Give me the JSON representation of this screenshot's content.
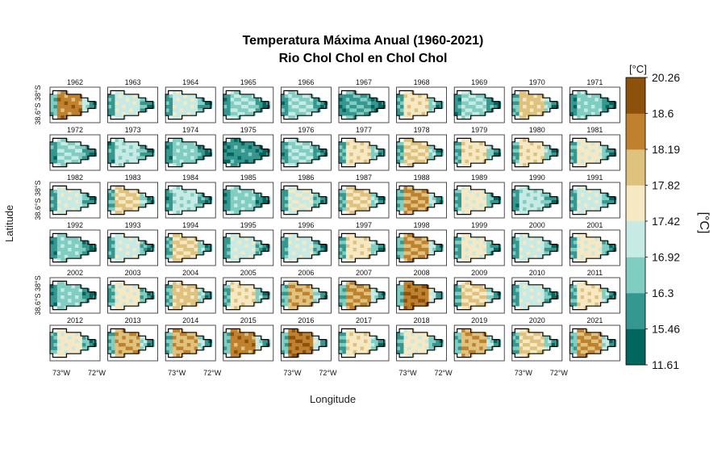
{
  "chart_data": {
    "type": "heatmap",
    "title": "Temperatura Máxima Anual (1960-2021)",
    "subtitle": "Rio Chol Chol en Chol Chol",
    "xlabel": "Longitude",
    "ylabel": "Latitude",
    "x_ticks": [
      "73°W",
      "72°W"
    ],
    "y_ticks": [
      "38.6°S",
      "38°S"
    ],
    "legend": {
      "unit_label": "[°C]",
      "title": "[°C]",
      "breaks": [
        11.61,
        15.46,
        16.3,
        16.92,
        17.42,
        17.82,
        18.19,
        18.6,
        20.26
      ],
      "break_labels": [
        "11.61",
        "15.46",
        "16.3",
        "16.92",
        "17.42",
        "17.82",
        "18.19",
        "18.6",
        "20.26"
      ],
      "colors": [
        "#01665e",
        "#35978f",
        "#80cdc1",
        "#c7eae5",
        "#f6e8c3",
        "#dfc27d",
        "#bf812d",
        "#8c510a"
      ]
    },
    "panels": [
      {
        "year": "1962",
        "level": 0.85
      },
      {
        "year": "1963",
        "level": 0.45
      },
      {
        "year": "1964",
        "level": 0.45
      },
      {
        "year": "1965",
        "level": 0.35
      },
      {
        "year": "1966",
        "level": 0.35
      },
      {
        "year": "1967",
        "level": 0.2
      },
      {
        "year": "1968",
        "level": 0.6
      },
      {
        "year": "1969",
        "level": 0.35
      },
      {
        "year": "1970",
        "level": 0.7
      },
      {
        "year": "1971",
        "level": 0.3
      },
      {
        "year": "1972",
        "level": 0.35
      },
      {
        "year": "1973",
        "level": 0.4
      },
      {
        "year": "1974",
        "level": 0.3
      },
      {
        "year": "1975",
        "level": 0.15
      },
      {
        "year": "1976",
        "level": 0.35
      },
      {
        "year": "1977",
        "level": 0.6
      },
      {
        "year": "1978",
        "level": 0.65
      },
      {
        "year": "1979",
        "level": 0.6
      },
      {
        "year": "1980",
        "level": 0.6
      },
      {
        "year": "1981",
        "level": 0.55
      },
      {
        "year": "1982",
        "level": 0.45
      },
      {
        "year": "1983",
        "level": 0.65
      },
      {
        "year": "1984",
        "level": 0.4
      },
      {
        "year": "1985",
        "level": 0.3
      },
      {
        "year": "1986",
        "level": 0.5
      },
      {
        "year": "1987",
        "level": 0.65
      },
      {
        "year": "1988",
        "level": 0.8
      },
      {
        "year": "1989",
        "level": 0.55
      },
      {
        "year": "1990",
        "level": 0.4
      },
      {
        "year": "1991",
        "level": 0.45
      },
      {
        "year": "1992",
        "level": 0.3
      },
      {
        "year": "1993",
        "level": 0.45
      },
      {
        "year": "1994",
        "level": 0.65
      },
      {
        "year": "1995",
        "level": 0.45
      },
      {
        "year": "1996",
        "level": 0.45
      },
      {
        "year": "1997",
        "level": 0.6
      },
      {
        "year": "1998",
        "level": 0.8
      },
      {
        "year": "1999",
        "level": 0.55
      },
      {
        "year": "2000",
        "level": 0.45
      },
      {
        "year": "2001",
        "level": 0.55
      },
      {
        "year": "2002",
        "level": 0.3
      },
      {
        "year": "2003",
        "level": 0.55
      },
      {
        "year": "2004",
        "level": 0.7
      },
      {
        "year": "2005",
        "level": 0.6
      },
      {
        "year": "2006",
        "level": 0.75
      },
      {
        "year": "2007",
        "level": 0.8
      },
      {
        "year": "2008",
        "level": 0.9
      },
      {
        "year": "2009",
        "level": 0.65
      },
      {
        "year": "2010",
        "level": 0.45
      },
      {
        "year": "2011",
        "level": 0.6
      },
      {
        "year": "2012",
        "level": 0.55
      },
      {
        "year": "2013",
        "level": 0.75
      },
      {
        "year": "2014",
        "level": 0.75
      },
      {
        "year": "2015",
        "level": 0.85
      },
      {
        "year": "2016",
        "level": 0.9
      },
      {
        "year": "2017",
        "level": 0.6
      },
      {
        "year": "2018",
        "level": 0.55
      },
      {
        "year": "2019",
        "level": 0.75
      },
      {
        "year": "2020",
        "level": 0.65
      },
      {
        "year": "2021",
        "level": 0.8
      }
    ]
  }
}
